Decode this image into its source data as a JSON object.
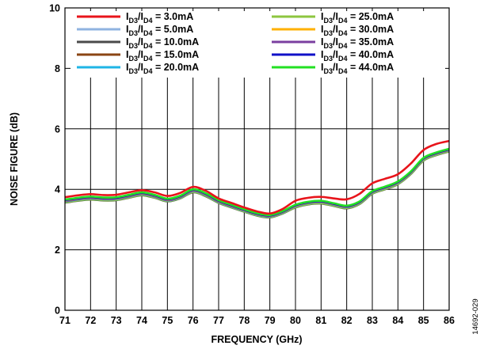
{
  "figure_id": "14692-029",
  "chart_data": {
    "type": "line",
    "title": "",
    "xlabel": "FREQUENCY (GHz)",
    "ylabel": "NOISE FIGURE (dB)",
    "xlim": [
      71,
      86
    ],
    "ylim": [
      0,
      10
    ],
    "xticks": [
      71,
      72,
      73,
      74,
      75,
      76,
      77,
      78,
      79,
      80,
      81,
      82,
      83,
      84,
      85,
      86
    ],
    "yticks": [
      0,
      2,
      4,
      6,
      8,
      10
    ],
    "grid": true,
    "legend_position": "top",
    "x": [
      71,
      71.5,
      72,
      72.5,
      73,
      73.5,
      74,
      74.5,
      75,
      75.5,
      76,
      76.5,
      77,
      77.5,
      78,
      78.5,
      79,
      79.5,
      80,
      80.5,
      81,
      81.5,
      82,
      82.5,
      83,
      83.5,
      84,
      84.5,
      85,
      85.5,
      86
    ],
    "series": [
      {
        "name": "ID3/ID4 = 3.0mA",
        "color": "#e8141b",
        "values": [
          3.74,
          3.8,
          3.84,
          3.81,
          3.82,
          3.9,
          3.97,
          3.9,
          3.78,
          3.88,
          4.08,
          3.95,
          3.7,
          3.55,
          3.4,
          3.27,
          3.2,
          3.35,
          3.62,
          3.72,
          3.75,
          3.7,
          3.67,
          3.85,
          4.2,
          4.35,
          4.5,
          4.85,
          5.3,
          5.5,
          5.6
        ]
      },
      {
        "name": "ID3/ID4 = 5.0mA",
        "color": "#8fb3e0",
        "values": [
          3.62,
          3.68,
          3.72,
          3.69,
          3.7,
          3.78,
          3.86,
          3.78,
          3.65,
          3.75,
          3.96,
          3.83,
          3.6,
          3.45,
          3.3,
          3.17,
          3.11,
          3.24,
          3.45,
          3.55,
          3.58,
          3.5,
          3.42,
          3.56,
          3.9,
          4.05,
          4.22,
          4.55,
          5.0,
          5.18,
          5.3
        ]
      },
      {
        "name": "ID3/ID4 = 10.0mA",
        "color": "#4a4a4a",
        "values": [
          3.56,
          3.62,
          3.66,
          3.63,
          3.64,
          3.72,
          3.8,
          3.72,
          3.6,
          3.7,
          3.9,
          3.77,
          3.55,
          3.4,
          3.26,
          3.13,
          3.07,
          3.2,
          3.4,
          3.5,
          3.53,
          3.45,
          3.37,
          3.51,
          3.85,
          4.0,
          4.17,
          4.5,
          4.95,
          5.13,
          5.25
        ]
      },
      {
        "name": "ID3/ID4 = 15.0mA",
        "color": "#8b4513",
        "values": [
          3.58,
          3.64,
          3.68,
          3.65,
          3.66,
          3.74,
          3.82,
          3.74,
          3.62,
          3.72,
          3.92,
          3.79,
          3.57,
          3.42,
          3.28,
          3.15,
          3.09,
          3.22,
          3.42,
          3.52,
          3.55,
          3.47,
          3.39,
          3.53,
          3.87,
          4.02,
          4.19,
          4.52,
          4.97,
          5.15,
          5.27
        ]
      },
      {
        "name": "ID3/ID4 = 20.0mA",
        "color": "#1fb5e6",
        "values": [
          3.6,
          3.66,
          3.7,
          3.67,
          3.68,
          3.76,
          3.84,
          3.76,
          3.63,
          3.73,
          3.94,
          3.81,
          3.58,
          3.43,
          3.29,
          3.16,
          3.1,
          3.23,
          3.44,
          3.54,
          3.57,
          3.49,
          3.41,
          3.55,
          3.89,
          4.04,
          4.21,
          4.54,
          4.99,
          5.17,
          5.29
        ]
      },
      {
        "name": "ID3/ID4 = 25.0mA",
        "color": "#8dc63f",
        "values": [
          3.57,
          3.63,
          3.67,
          3.64,
          3.65,
          3.73,
          3.81,
          3.73,
          3.61,
          3.71,
          3.91,
          3.78,
          3.56,
          3.41,
          3.27,
          3.14,
          3.08,
          3.21,
          3.41,
          3.51,
          3.54,
          3.46,
          3.38,
          3.52,
          3.86,
          4.01,
          4.18,
          4.51,
          4.96,
          5.14,
          5.26
        ]
      },
      {
        "name": "ID3/ID4 = 30.0mA",
        "color": "#ffb000",
        "values": [
          3.63,
          3.69,
          3.73,
          3.7,
          3.71,
          3.79,
          3.87,
          3.79,
          3.66,
          3.76,
          3.97,
          3.84,
          3.61,
          3.46,
          3.31,
          3.18,
          3.12,
          3.25,
          3.46,
          3.56,
          3.59,
          3.51,
          3.43,
          3.57,
          3.91,
          4.06,
          4.23,
          4.56,
          5.01,
          5.19,
          5.31
        ]
      },
      {
        "name": "ID3/ID4 = 35.0mA",
        "color": "#7b3fa0",
        "values": [
          3.61,
          3.67,
          3.71,
          3.68,
          3.69,
          3.77,
          3.85,
          3.77,
          3.64,
          3.74,
          3.95,
          3.82,
          3.59,
          3.44,
          3.3,
          3.17,
          3.11,
          3.24,
          3.45,
          3.55,
          3.58,
          3.5,
          3.42,
          3.56,
          3.9,
          4.05,
          4.22,
          4.55,
          5.0,
          5.18,
          5.3
        ]
      },
      {
        "name": "ID3/ID4 = 40.0mA",
        "color": "#1010c8",
        "values": [
          3.64,
          3.7,
          3.74,
          3.71,
          3.72,
          3.8,
          3.88,
          3.8,
          3.67,
          3.77,
          3.98,
          3.85,
          3.62,
          3.47,
          3.32,
          3.19,
          3.13,
          3.26,
          3.47,
          3.57,
          3.6,
          3.52,
          3.44,
          3.58,
          3.92,
          4.07,
          4.24,
          4.57,
          5.02,
          5.2,
          5.32
        ]
      },
      {
        "name": "ID3/ID4 = 44.0mA",
        "color": "#22e022",
        "values": [
          3.66,
          3.72,
          3.76,
          3.73,
          3.74,
          3.82,
          3.9,
          3.82,
          3.69,
          3.79,
          4.0,
          3.87,
          3.64,
          3.49,
          3.34,
          3.21,
          3.15,
          3.28,
          3.49,
          3.59,
          3.62,
          3.54,
          3.46,
          3.6,
          3.94,
          4.09,
          4.26,
          4.59,
          5.04,
          5.22,
          5.34
        ]
      }
    ],
    "legend": [
      {
        "pre": "I",
        "sub1": "D3",
        "mid": "/I",
        "sub2": "D4",
        "post": " = 3.0mA"
      },
      {
        "pre": "I",
        "sub1": "D3",
        "mid": "/I",
        "sub2": "D4",
        "post": " = 5.0mA"
      },
      {
        "pre": "I",
        "sub1": "D3",
        "mid": "/I",
        "sub2": "D4",
        "post": " = 10.0mA"
      },
      {
        "pre": "I",
        "sub1": "D3",
        "mid": "/I",
        "sub2": "D4",
        "post": " = 15.0mA"
      },
      {
        "pre": "I",
        "sub1": "D3",
        "mid": "/I",
        "sub2": "D4",
        "post": " = 20.0mA"
      },
      {
        "pre": "I",
        "sub1": "D3",
        "mid": "/I",
        "sub2": "D4",
        "post": " = 25.0mA"
      },
      {
        "pre": "I",
        "sub1": "D3",
        "mid": "/I",
        "sub2": "D4",
        "post": " = 30.0mA"
      },
      {
        "pre": "I",
        "sub1": "D3",
        "mid": "/I",
        "sub2": "D4",
        "post": " = 35.0mA"
      },
      {
        "pre": "I",
        "sub1": "D3",
        "mid": "/I",
        "sub2": "D4",
        "post": " = 40.0mA"
      },
      {
        "pre": "I",
        "sub1": "D3",
        "mid": "/I",
        "sub2": "D4",
        "post": " = 44.0mA"
      }
    ]
  }
}
